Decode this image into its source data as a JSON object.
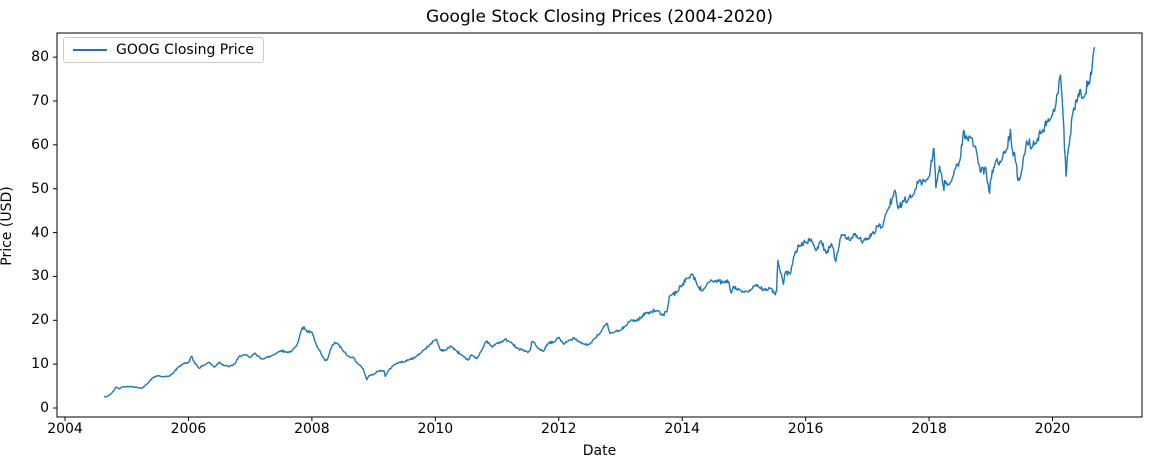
{
  "chart_data": {
    "type": "line",
    "title": "Google Stock Closing Prices (2004-2020)",
    "xlabel": "Date",
    "ylabel": "Price (USD)",
    "grid": false,
    "legend_position": "upper left",
    "line_color": "#1f77b4",
    "x_ticks": [
      2004,
      2006,
      2008,
      2010,
      2012,
      2014,
      2016,
      2018,
      2020
    ],
    "y_ticks": [
      0,
      10,
      20,
      30,
      40,
      50,
      60,
      70,
      80
    ],
    "xlim": [
      2003.87,
      2021.45
    ],
    "ylim": [
      -2.05,
      85.5
    ],
    "series": [
      {
        "name": "GOOG Closing Price",
        "color": "#1f77b4",
        "points": [
          [
            2004.63,
            2.51
          ],
          [
            2004.67,
            2.57
          ],
          [
            2004.75,
            3.24
          ],
          [
            2004.83,
            4.77
          ],
          [
            2004.88,
            4.35
          ],
          [
            2004.92,
            4.82
          ],
          [
            2005.08,
            4.89
          ],
          [
            2005.17,
            4.69
          ],
          [
            2005.25,
            4.51
          ],
          [
            2005.33,
            5.5
          ],
          [
            2005.42,
            6.91
          ],
          [
            2005.5,
            7.36
          ],
          [
            2005.58,
            7.14
          ],
          [
            2005.67,
            7.16
          ],
          [
            2005.75,
            7.91
          ],
          [
            2005.83,
            9.3
          ],
          [
            2005.92,
            10.12
          ],
          [
            2006.0,
            10.37
          ],
          [
            2006.05,
            11.78
          ],
          [
            2006.08,
            10.82
          ],
          [
            2006.17,
            9.05
          ],
          [
            2006.25,
            9.75
          ],
          [
            2006.33,
            10.45
          ],
          [
            2006.42,
            9.3
          ],
          [
            2006.5,
            10.48
          ],
          [
            2006.58,
            9.67
          ],
          [
            2006.67,
            9.46
          ],
          [
            2006.75,
            10.04
          ],
          [
            2006.83,
            11.9
          ],
          [
            2006.92,
            12.11
          ],
          [
            2007.0,
            11.51
          ],
          [
            2007.08,
            12.53
          ],
          [
            2007.17,
            11.24
          ],
          [
            2007.25,
            11.46
          ],
          [
            2007.33,
            11.78
          ],
          [
            2007.42,
            12.48
          ],
          [
            2007.5,
            13.08
          ],
          [
            2007.58,
            12.75
          ],
          [
            2007.67,
            12.88
          ],
          [
            2007.75,
            14.18
          ],
          [
            2007.83,
            17.68
          ],
          [
            2007.87,
            18.56
          ],
          [
            2007.92,
            17.33
          ],
          [
            2008.0,
            17.29
          ],
          [
            2008.08,
            14.11
          ],
          [
            2008.17,
            11.78
          ],
          [
            2008.21,
            10.82
          ],
          [
            2008.25,
            11.01
          ],
          [
            2008.33,
            14.37
          ],
          [
            2008.38,
            14.87
          ],
          [
            2008.42,
            14.66
          ],
          [
            2008.5,
            13.16
          ],
          [
            2008.58,
            11.83
          ],
          [
            2008.67,
            11.58
          ],
          [
            2008.75,
            10.01
          ],
          [
            2008.83,
            8.98
          ],
          [
            2008.89,
            6.44
          ],
          [
            2008.92,
            7.32
          ],
          [
            2009.0,
            7.69
          ],
          [
            2009.08,
            8.46
          ],
          [
            2009.17,
            8.47
          ],
          [
            2009.19,
            7.21
          ],
          [
            2009.25,
            8.71
          ],
          [
            2009.33,
            9.89
          ],
          [
            2009.42,
            10.42
          ],
          [
            2009.5,
            10.54
          ],
          [
            2009.58,
            11.08
          ],
          [
            2009.67,
            11.54
          ],
          [
            2009.75,
            12.39
          ],
          [
            2009.83,
            13.41
          ],
          [
            2009.92,
            14.56
          ],
          [
            2010.0,
            15.5
          ],
          [
            2010.02,
            15.61
          ],
          [
            2010.08,
            13.25
          ],
          [
            2010.17,
            13.16
          ],
          [
            2010.25,
            14.17
          ],
          [
            2010.33,
            13.14
          ],
          [
            2010.42,
            12.15
          ],
          [
            2010.5,
            11.12
          ],
          [
            2010.53,
            10.9
          ],
          [
            2010.58,
            12.11
          ],
          [
            2010.67,
            11.25
          ],
          [
            2010.75,
            13.14
          ],
          [
            2010.83,
            15.33
          ],
          [
            2010.92,
            13.88
          ],
          [
            2011.0,
            14.85
          ],
          [
            2011.08,
            15.01
          ],
          [
            2011.13,
            15.68
          ],
          [
            2011.17,
            15.32
          ],
          [
            2011.25,
            14.65
          ],
          [
            2011.33,
            13.61
          ],
          [
            2011.42,
            13.24
          ],
          [
            2011.5,
            12.66
          ],
          [
            2011.54,
            13.3
          ],
          [
            2011.56,
            14.93
          ],
          [
            2011.58,
            15.16
          ],
          [
            2011.67,
            13.52
          ],
          [
            2011.75,
            12.88
          ],
          [
            2011.83,
            14.8
          ],
          [
            2011.92,
            14.99
          ],
          [
            2012.0,
            16.15
          ],
          [
            2012.08,
            14.51
          ],
          [
            2012.17,
            15.47
          ],
          [
            2012.25,
            16.03
          ],
          [
            2012.33,
            15.14
          ],
          [
            2012.42,
            14.52
          ],
          [
            2012.5,
            14.5
          ],
          [
            2012.58,
            15.83
          ],
          [
            2012.67,
            17.12
          ],
          [
            2012.75,
            18.87
          ],
          [
            2012.79,
            19.15
          ],
          [
            2012.83,
            17.0
          ],
          [
            2012.92,
            17.46
          ],
          [
            2013.0,
            17.68
          ],
          [
            2013.08,
            18.77
          ],
          [
            2013.17,
            20.05
          ],
          [
            2013.25,
            19.85
          ],
          [
            2013.33,
            20.62
          ],
          [
            2013.42,
            21.78
          ],
          [
            2013.5,
            22.0
          ],
          [
            2013.58,
            22.21
          ],
          [
            2013.67,
            21.18
          ],
          [
            2013.75,
            21.9
          ],
          [
            2013.79,
            25.3
          ],
          [
            2013.83,
            25.77
          ],
          [
            2013.92,
            26.54
          ],
          [
            2014.0,
            28.02
          ],
          [
            2014.08,
            29.55
          ],
          [
            2014.15,
            30.45
          ],
          [
            2014.17,
            30.41
          ],
          [
            2014.25,
            27.87
          ],
          [
            2014.33,
            26.7
          ],
          [
            2014.42,
            28.57
          ],
          [
            2014.5,
            28.9
          ],
          [
            2014.58,
            28.95
          ],
          [
            2014.67,
            28.62
          ],
          [
            2014.75,
            28.86
          ],
          [
            2014.79,
            26.2
          ],
          [
            2014.83,
            27.75
          ],
          [
            2014.92,
            27.06
          ],
          [
            2015.0,
            26.31
          ],
          [
            2015.08,
            26.55
          ],
          [
            2015.17,
            27.92
          ],
          [
            2015.25,
            27.41
          ],
          [
            2015.33,
            27.02
          ],
          [
            2015.42,
            27.32
          ],
          [
            2015.5,
            26.03
          ],
          [
            2015.53,
            26.61
          ],
          [
            2015.55,
            33.66
          ],
          [
            2015.58,
            31.61
          ],
          [
            2015.64,
            28.2
          ],
          [
            2015.67,
            30.92
          ],
          [
            2015.75,
            30.52
          ],
          [
            2015.83,
            35.55
          ],
          [
            2015.92,
            37.12
          ],
          [
            2016.0,
            37.84
          ],
          [
            2016.08,
            38.07
          ],
          [
            2016.09,
            38.5
          ],
          [
            2016.17,
            35.87
          ],
          [
            2016.25,
            38.14
          ],
          [
            2016.33,
            35.32
          ],
          [
            2016.42,
            37.44
          ],
          [
            2016.49,
            33.4
          ],
          [
            2016.5,
            34.59
          ],
          [
            2016.58,
            39.56
          ],
          [
            2016.67,
            38.45
          ],
          [
            2016.75,
            38.87
          ],
          [
            2016.83,
            39.27
          ],
          [
            2016.92,
            37.58
          ],
          [
            2017.0,
            38.59
          ],
          [
            2017.08,
            39.81
          ],
          [
            2017.17,
            41.43
          ],
          [
            2017.25,
            41.46
          ],
          [
            2017.33,
            45.22
          ],
          [
            2017.42,
            48.21
          ],
          [
            2017.46,
            49.2
          ],
          [
            2017.5,
            45.45
          ],
          [
            2017.58,
            47.28
          ],
          [
            2017.67,
            47.74
          ],
          [
            2017.75,
            48.68
          ],
          [
            2017.83,
            51.65
          ],
          [
            2017.92,
            51.8
          ],
          [
            2018.0,
            52.67
          ],
          [
            2018.07,
            59.11
          ],
          [
            2018.08,
            59.12
          ],
          [
            2018.11,
            50.2
          ],
          [
            2018.17,
            55.21
          ],
          [
            2018.24,
            49.6
          ],
          [
            2018.25,
            51.85
          ],
          [
            2018.33,
            50.93
          ],
          [
            2018.42,
            54.4
          ],
          [
            2018.5,
            56.44
          ],
          [
            2018.56,
            63.3
          ],
          [
            2018.58,
            61.4
          ],
          [
            2018.67,
            61.61
          ],
          [
            2018.75,
            59.69
          ],
          [
            2018.83,
            53.77
          ],
          [
            2018.92,
            54.69
          ],
          [
            2018.98,
            48.95
          ],
          [
            2019.0,
            52.24
          ],
          [
            2019.08,
            56.31
          ],
          [
            2019.17,
            56.27
          ],
          [
            2019.25,
            58.8
          ],
          [
            2019.32,
            63.5
          ],
          [
            2019.34,
            59.4
          ],
          [
            2019.42,
            55.34
          ],
          [
            2019.44,
            51.9
          ],
          [
            2019.5,
            54.16
          ],
          [
            2019.58,
            60.91
          ],
          [
            2019.67,
            59.45
          ],
          [
            2019.75,
            61.05
          ],
          [
            2019.83,
            62.93
          ],
          [
            2019.92,
            65.21
          ],
          [
            2020.0,
            66.85
          ],
          [
            2020.08,
            71.65
          ],
          [
            2020.13,
            75.91
          ],
          [
            2020.17,
            66.97
          ],
          [
            2020.22,
            52.84
          ],
          [
            2020.25,
            58.1
          ],
          [
            2020.33,
            67.34
          ],
          [
            2020.42,
            71.68
          ],
          [
            2020.5,
            70.72
          ],
          [
            2020.58,
            74.4
          ],
          [
            2020.63,
            76.0
          ],
          [
            2020.67,
            81.6
          ],
          [
            2020.68,
            82.3
          ]
        ]
      }
    ]
  }
}
